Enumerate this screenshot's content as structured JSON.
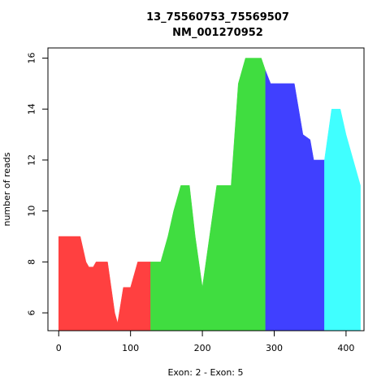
{
  "chart_data": {
    "type": "area",
    "title": "13_75560753_75569507",
    "subtitle": "NM_001270952",
    "xlabel": "Exon: 2 - Exon: 5",
    "ylabel": "number of reads",
    "xlim": [
      -15,
      425
    ],
    "ylim": [
      5.3,
      16.4
    ],
    "x_ticks": [
      0,
      100,
      200,
      300,
      400
    ],
    "y_ticks": [
      6,
      8,
      10,
      12,
      14,
      16
    ],
    "grid": false,
    "legend": "none",
    "series": [
      {
        "color": "#ff4040",
        "points": [
          [
            0,
            9
          ],
          [
            30,
            9
          ],
          [
            38,
            8
          ],
          [
            42,
            7.8
          ],
          [
            48,
            7.8
          ],
          [
            52,
            8
          ],
          [
            68,
            8
          ],
          [
            78,
            6
          ],
          [
            82,
            5.6
          ],
          [
            90,
            7
          ],
          [
            100,
            7
          ],
          [
            110,
            8
          ],
          [
            128,
            8
          ]
        ]
      },
      {
        "color": "#40dd40",
        "points": [
          [
            128,
            8
          ],
          [
            142,
            8
          ],
          [
            152,
            9
          ],
          [
            160,
            10
          ],
          [
            170,
            11
          ],
          [
            182,
            11
          ],
          [
            190,
            9
          ],
          [
            200,
            7
          ],
          [
            210,
            9
          ],
          [
            220,
            11
          ],
          [
            240,
            11
          ],
          [
            250,
            15
          ],
          [
            260,
            16
          ],
          [
            282,
            16
          ],
          [
            288,
            15.5
          ]
        ]
      },
      {
        "color": "#4040ff",
        "points": [
          [
            288,
            15.5
          ],
          [
            295,
            15
          ],
          [
            328,
            15
          ],
          [
            340,
            13
          ],
          [
            350,
            12.8
          ],
          [
            355,
            12
          ],
          [
            370,
            12
          ]
        ]
      },
      {
        "color": "#40ffff",
        "points": [
          [
            370,
            12
          ],
          [
            380,
            14
          ],
          [
            392,
            14
          ],
          [
            400,
            13
          ],
          [
            410,
            12
          ],
          [
            420,
            11
          ]
        ]
      }
    ]
  }
}
